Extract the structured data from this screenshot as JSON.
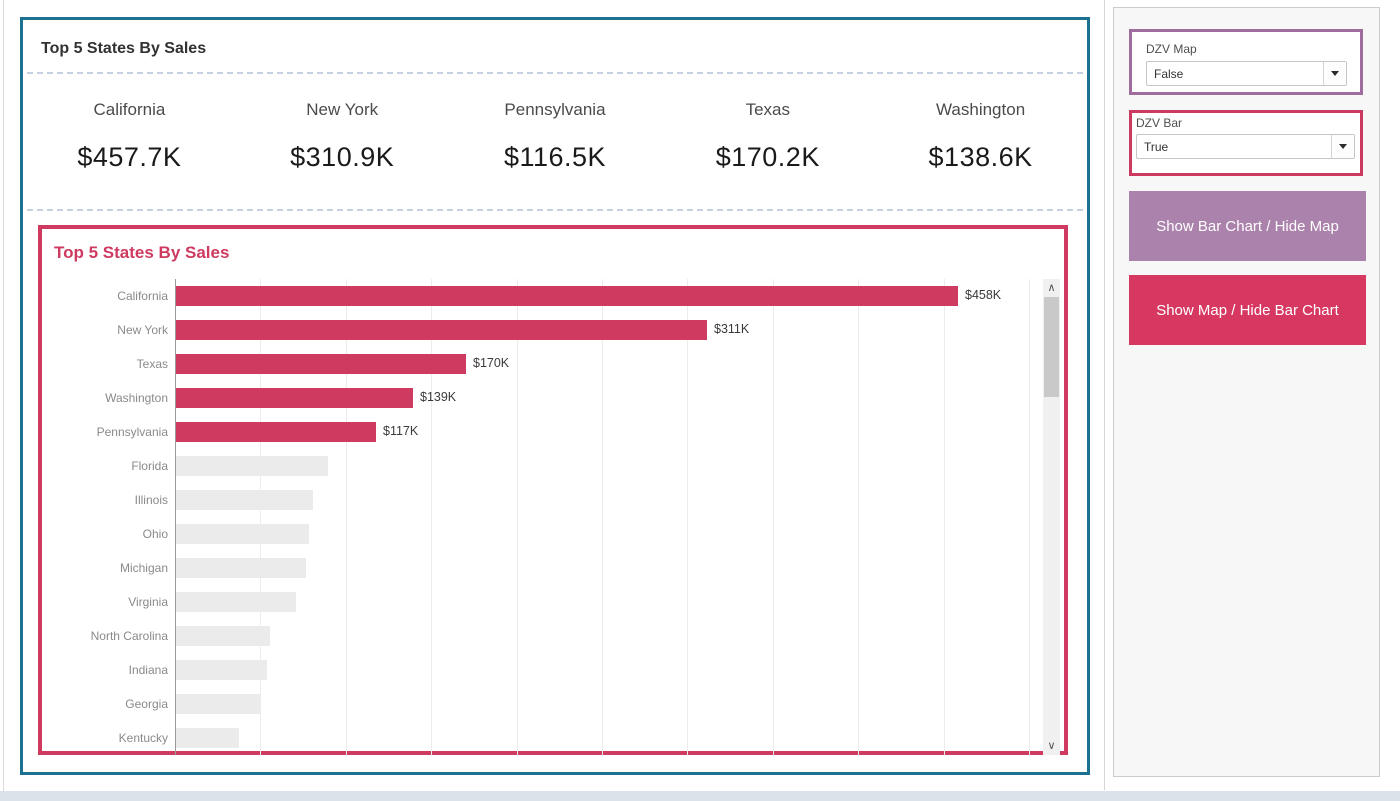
{
  "dashboard": {
    "kpi_section": {
      "title": "Top 5 States By Sales",
      "kpis": [
        {
          "state": "California",
          "value": "$457.7K"
        },
        {
          "state": "New York",
          "value": "$310.9K"
        },
        {
          "state": "Pennsylvania",
          "value": "$116.5K"
        },
        {
          "state": "Texas",
          "value": "$170.2K"
        },
        {
          "state": "Washington",
          "value": "$138.6K"
        }
      ]
    },
    "bar_chart_title": "Top 5 States By Sales"
  },
  "chart_data": {
    "type": "bar",
    "orientation": "horizontal",
    "title": "Top 5 States By Sales",
    "categories": [
      "California",
      "New York",
      "Texas",
      "Washington",
      "Pennsylvania",
      "Florida",
      "Illinois",
      "Ohio",
      "Michigan",
      "Virginia",
      "North Carolina",
      "Indiana",
      "Georgia",
      "Kentucky"
    ],
    "values_k_usd": [
      458,
      311,
      170,
      139,
      117,
      89,
      80,
      78,
      76,
      70,
      55,
      53,
      49,
      37
    ],
    "bar_labels": [
      "$458K",
      "$311K",
      "$170K",
      "$139K",
      "$117K",
      "",
      "",
      "",
      "",
      "",
      "",
      "",
      "",
      ""
    ],
    "highlight_count": 5,
    "xlabel": "",
    "ylabel": "",
    "x_axis_range_k": [
      0,
      500
    ],
    "gridline_step_k": 50,
    "grid": true,
    "legend": "none",
    "scrollable": true
  },
  "panel": {
    "dzv_map": {
      "label": "DZV Map",
      "value": "False"
    },
    "dzv_bar": {
      "label": "DZV Bar",
      "value": "True"
    },
    "show_bar_button": "Show Bar Chart / Hide Map",
    "show_map_button": "Show Map / Hide Bar Chart"
  },
  "colors": {
    "dashboard_border": "#1a7191",
    "chart_border": "#ce3a60",
    "highlight_bar": "#ce3a60",
    "dim_bar": "#ebebeb",
    "map_param_border": "#a06b9d",
    "bar_param_border": "#cb3a60",
    "show_bar_button_bg": "#ab82ab",
    "show_map_button_bg": "#d63862",
    "dashed_separator": "#c5d1e1"
  },
  "scrollbar": {
    "up_glyph": "∧",
    "down_glyph": "∨"
  }
}
